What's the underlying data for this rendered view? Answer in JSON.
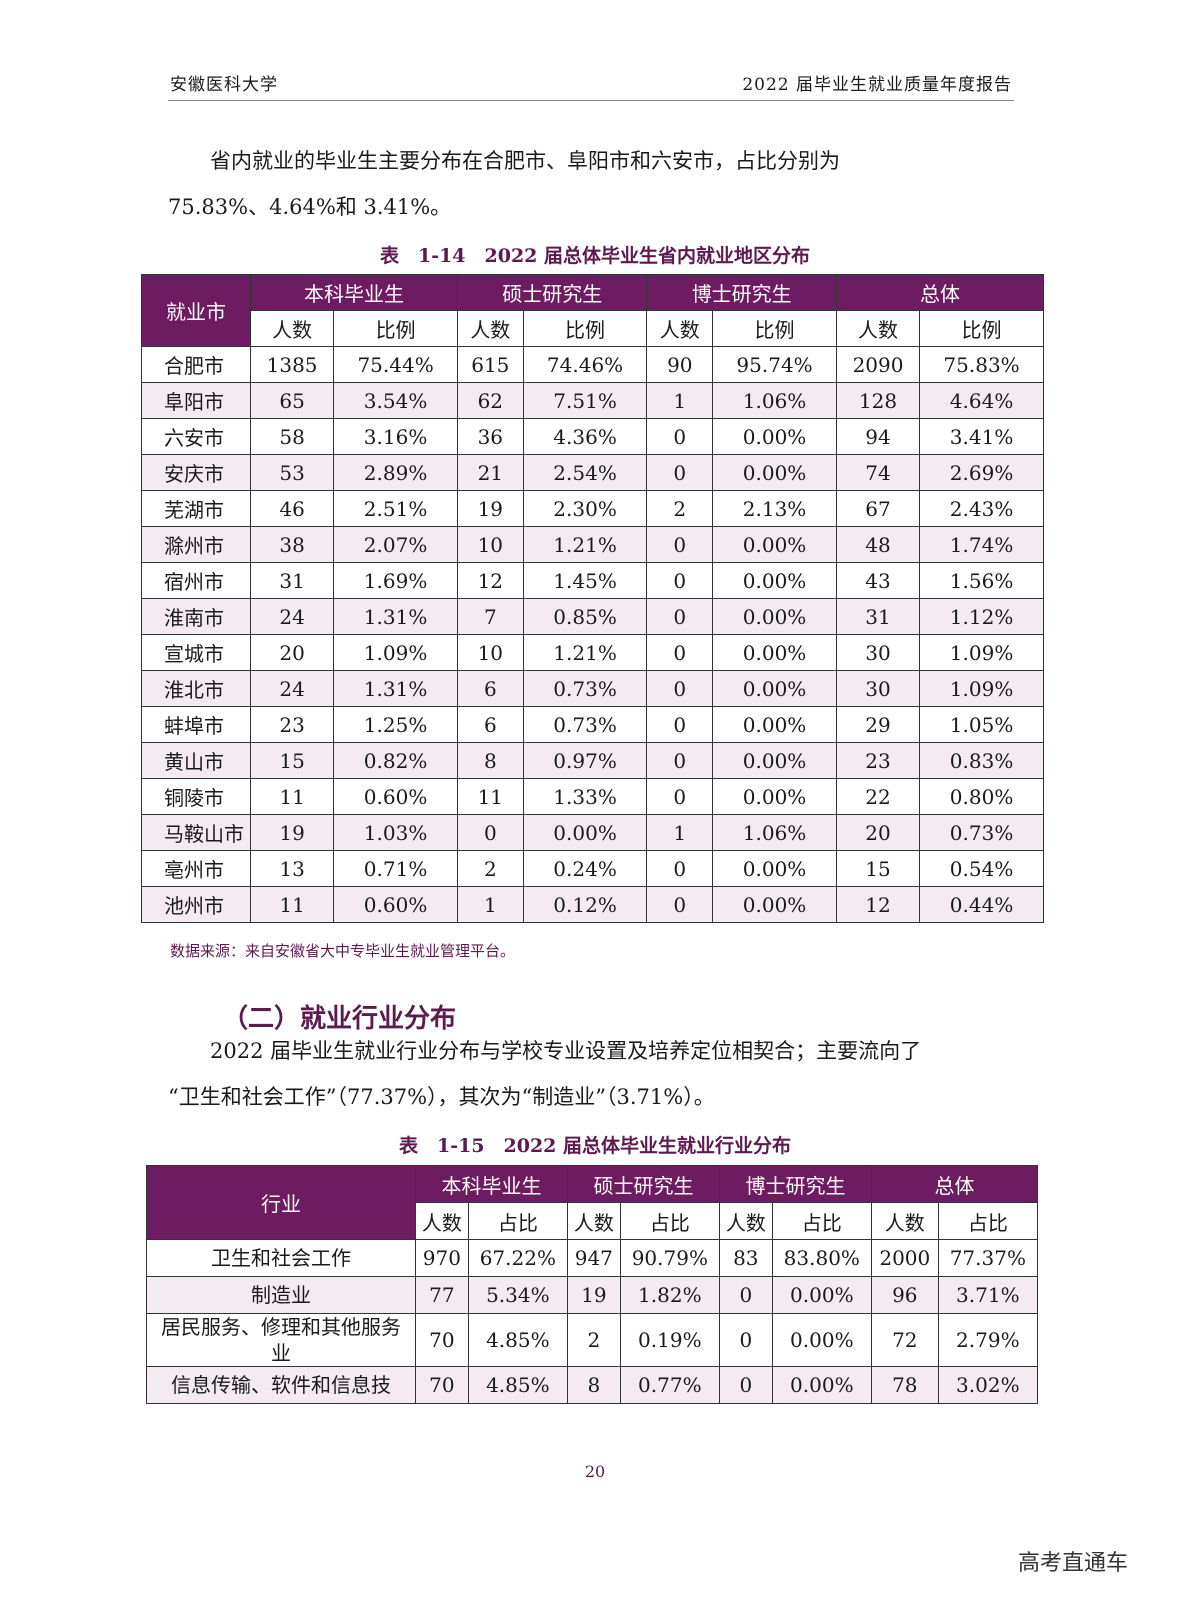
{
  "header": {
    "left": "安徽医科大学",
    "right": "2022 届毕业生就业质量年度报告"
  },
  "para1": {
    "line1": "省内就业的毕业生主要分布在合肥市、阜阳市和六安市，占比分别为",
    "line2": "75.83%、4.64%和 3.41%。"
  },
  "table1": {
    "caption": "表　1-14　2022 届总体毕业生省内就业地区分布",
    "city_header": "就业市",
    "groups": [
      "本科毕业生",
      "硕士研究生",
      "博士研究生",
      "总体"
    ],
    "sub": [
      "人数",
      "比例"
    ],
    "rows": [
      {
        "city": "合肥市",
        "v": [
          "1385",
          "75.44%",
          "615",
          "74.46%",
          "90",
          "95.74%",
          "2090",
          "75.83%"
        ]
      },
      {
        "city": "阜阳市",
        "v": [
          "65",
          "3.54%",
          "62",
          "7.51%",
          "1",
          "1.06%",
          "128",
          "4.64%"
        ]
      },
      {
        "city": "六安市",
        "v": [
          "58",
          "3.16%",
          "36",
          "4.36%",
          "0",
          "0.00%",
          "94",
          "3.41%"
        ]
      },
      {
        "city": "安庆市",
        "v": [
          "53",
          "2.89%",
          "21",
          "2.54%",
          "0",
          "0.00%",
          "74",
          "2.69%"
        ]
      },
      {
        "city": "芜湖市",
        "v": [
          "46",
          "2.51%",
          "19",
          "2.30%",
          "2",
          "2.13%",
          "67",
          "2.43%"
        ]
      },
      {
        "city": "滁州市",
        "v": [
          "38",
          "2.07%",
          "10",
          "1.21%",
          "0",
          "0.00%",
          "48",
          "1.74%"
        ]
      },
      {
        "city": "宿州市",
        "v": [
          "31",
          "1.69%",
          "12",
          "1.45%",
          "0",
          "0.00%",
          "43",
          "1.56%"
        ]
      },
      {
        "city": "淮南市",
        "v": [
          "24",
          "1.31%",
          "7",
          "0.85%",
          "0",
          "0.00%",
          "31",
          "1.12%"
        ]
      },
      {
        "city": "宣城市",
        "v": [
          "20",
          "1.09%",
          "10",
          "1.21%",
          "0",
          "0.00%",
          "30",
          "1.09%"
        ]
      },
      {
        "city": "淮北市",
        "v": [
          "24",
          "1.31%",
          "6",
          "0.73%",
          "0",
          "0.00%",
          "30",
          "1.09%"
        ]
      },
      {
        "city": "蚌埠市",
        "v": [
          "23",
          "1.25%",
          "6",
          "0.73%",
          "0",
          "0.00%",
          "29",
          "1.05%"
        ]
      },
      {
        "city": "黄山市",
        "v": [
          "15",
          "0.82%",
          "8",
          "0.97%",
          "0",
          "0.00%",
          "23",
          "0.83%"
        ]
      },
      {
        "city": "铜陵市",
        "v": [
          "11",
          "0.60%",
          "11",
          "1.33%",
          "0",
          "0.00%",
          "22",
          "0.80%"
        ]
      },
      {
        "city": "马鞍山市",
        "v": [
          "19",
          "1.03%",
          "0",
          "0.00%",
          "1",
          "1.06%",
          "20",
          "0.73%"
        ]
      },
      {
        "city": "亳州市",
        "v": [
          "13",
          "0.71%",
          "2",
          "0.24%",
          "0",
          "0.00%",
          "15",
          "0.54%"
        ]
      },
      {
        "city": "池州市",
        "v": [
          "11",
          "0.60%",
          "1",
          "0.12%",
          "0",
          "0.00%",
          "12",
          "0.44%"
        ]
      }
    ],
    "source": "数据来源：来自安徽省大中专毕业生就业管理平台。"
  },
  "section": {
    "title": "（二）就业行业分布"
  },
  "para2": {
    "line1": "2022 届毕业生就业行业分布与学校专业设置及培养定位相契合；主要流向了",
    "line2": "“卫生和社会工作”（77.37%），其次为“制造业”（3.71%）。"
  },
  "table2": {
    "caption": "表　1-15　2022 届总体毕业生就业行业分布",
    "ind_header": "行业",
    "groups": [
      "本科毕业生",
      "硕士研究生",
      "博士研究生",
      "总体"
    ],
    "sub": [
      "人数",
      "占比"
    ],
    "rows": [
      {
        "name": "卫生和社会工作",
        "v": [
          "970",
          "67.22%",
          "947",
          "90.79%",
          "83",
          "83.80%",
          "2000",
          "77.37%"
        ]
      },
      {
        "name": "制造业",
        "v": [
          "77",
          "5.34%",
          "19",
          "1.82%",
          "0",
          "0.00%",
          "96",
          "3.71%"
        ]
      },
      {
        "name": "居民服务、修理和其他服务业",
        "v": [
          "70",
          "4.85%",
          "2",
          "0.19%",
          "0",
          "0.00%",
          "72",
          "2.79%"
        ]
      },
      {
        "name": "信息传输、软件和信息技",
        "v": [
          "70",
          "4.85%",
          "8",
          "0.77%",
          "0",
          "0.00%",
          "78",
          "3.02%"
        ]
      }
    ]
  },
  "footer": {
    "page": "20",
    "watermark": "高考直通车"
  }
}
